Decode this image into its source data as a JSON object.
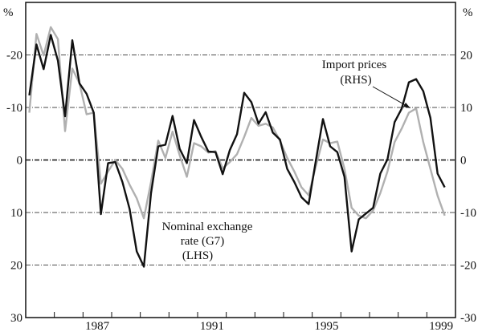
{
  "chart_data": {
    "type": "line",
    "title": "",
    "x_frequency": "quarterly",
    "x_start": "1985 Q1",
    "x_end": "1999 Q3",
    "x_tick_labels": [
      "1987",
      "1991",
      "1995",
      "1999"
    ],
    "x_range": [
      1985,
      2000
    ],
    "left_axis": {
      "unit": "%",
      "ylim": [
        -30,
        30
      ],
      "inverted": true,
      "tick_labels": [
        "-20",
        "-10",
        "0",
        "10",
        "20",
        "30"
      ],
      "ticks": [
        -20,
        -10,
        0,
        10,
        20,
        30
      ]
    },
    "right_axis": {
      "unit": "%",
      "ylim": [
        -30,
        30
      ],
      "inverted": false,
      "tick_labels": [
        "20",
        "10",
        "0",
        "-10",
        "-20",
        "-30"
      ],
      "ticks": [
        20,
        10,
        0,
        -10,
        -20,
        -30
      ]
    },
    "grid": true,
    "series": [
      {
        "name": "Nominal exchange rate (G7) (LHS)",
        "axis": "left",
        "color": "#111111",
        "values": [
          -12.3,
          -22,
          -17.3,
          -23.8,
          -18.9,
          -8.3,
          -22.8,
          -14.6,
          -12.6,
          -9,
          10.3,
          0.6,
          0.4,
          4.2,
          9.3,
          17.4,
          20.3,
          6.3,
          -2.6,
          -2.9,
          -8.4,
          -2.1,
          0.6,
          -7.6,
          -4.4,
          -1.6,
          -1.5,
          2.7,
          -1.9,
          -4.9,
          -12.8,
          -11,
          -6.9,
          -9.1,
          -5.2,
          -3.9,
          1.7,
          4.2,
          7.1,
          8.4,
          0.2,
          -7.8,
          -2.6,
          -1.5,
          3.2,
          17.4,
          11.3,
          10.2,
          9.1,
          2.6,
          -0.1,
          -7.2,
          -9.8,
          -14.8,
          -15.4,
          -13.1,
          -8,
          2.6,
          5.2
        ]
      },
      {
        "name": "Import prices (RHS)",
        "axis": "right",
        "color": "#b0b0b0",
        "values": [
          9,
          24,
          19.9,
          25.3,
          23,
          5.5,
          17.4,
          14.6,
          8.7,
          9,
          -4.5,
          -2.2,
          0,
          -1.7,
          -4.7,
          -7.3,
          -11.1,
          -4.2,
          3.7,
          0.4,
          5.4,
          0.9,
          -3.2,
          3.2,
          2.6,
          1.4,
          1.7,
          -1.6,
          -0.4,
          1.1,
          4.4,
          8,
          6.5,
          6.9,
          6.2,
          3.7,
          0.4,
          -2.2,
          -5.2,
          -6.7,
          -1.2,
          3.9,
          3.2,
          3.5,
          -1.7,
          -9.1,
          -10.6,
          -11.1,
          -9.6,
          -6.3,
          -2.2,
          3.4,
          6,
          9,
          9.8,
          3.4,
          -1.7,
          -6.8,
          -10.6
        ]
      }
    ],
    "annotations": {
      "exchange": [
        "Nominal exchange",
        "rate (G7)",
        "(LHS)"
      ],
      "import": [
        "Import prices",
        "(RHS)"
      ]
    }
  }
}
